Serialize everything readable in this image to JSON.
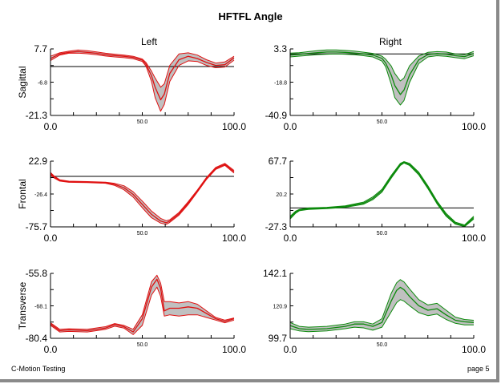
{
  "page_title": "HFTFL Angle",
  "footer": {
    "left": "C-Motion Testing",
    "right": "page 5"
  },
  "columns": {
    "left": "Left",
    "right": "Right"
  },
  "colors": {
    "left_line": "#e01010",
    "right_line": "#0a8a0a",
    "band": "#c0c0c0",
    "axis": "#000000"
  },
  "chart_data": [
    {
      "type": "line",
      "row": "Sagittal",
      "side": "Left",
      "ylabel": "Sagittal",
      "ylim": [
        -21.3,
        7.7
      ],
      "xlim": [
        0,
        100
      ],
      "y_ticks": [
        "7.7",
        "-6.8",
        "-21.3"
      ],
      "x_ticks": [
        "0.0",
        "50.0",
        "100.0"
      ],
      "zero_line": 0,
      "x": [
        0,
        5,
        10,
        15,
        20,
        25,
        30,
        35,
        40,
        45,
        50,
        52,
        55,
        57,
        60,
        62,
        65,
        70,
        75,
        80,
        85,
        90,
        95,
        100
      ],
      "mean": [
        3.5,
        5.5,
        6.2,
        6.5,
        6.2,
        5.8,
        5.2,
        4.8,
        4.5,
        4.0,
        2.8,
        1.0,
        -4.0,
        -9.0,
        -14.5,
        -12.0,
        -3.0,
        3.0,
        4.5,
        3.5,
        1.8,
        0.5,
        0.8,
        3.8
      ],
      "upper": [
        4.5,
        6.0,
        6.7,
        7.2,
        6.9,
        6.4,
        5.8,
        5.4,
        5.0,
        4.5,
        3.3,
        1.8,
        -2.0,
        -5.0,
        -9.0,
        -7.5,
        0.5,
        5.5,
        6.0,
        5.0,
        3.0,
        1.5,
        2.0,
        4.5
      ],
      "lower": [
        2.6,
        5.0,
        5.8,
        5.9,
        5.6,
        5.2,
        4.6,
        4.2,
        3.9,
        3.4,
        2.2,
        0.2,
        -6.5,
        -13.5,
        -19.5,
        -16.5,
        -6.5,
        0.5,
        2.5,
        2.2,
        0.5,
        -0.5,
        -0.2,
        2.8
      ]
    },
    {
      "type": "line",
      "row": "Sagittal",
      "side": "Right",
      "ylabel": "",
      "ylim": [
        -40.9,
        3.3
      ],
      "xlim": [
        0,
        100
      ],
      "y_ticks": [
        "3.3",
        "-18.8",
        "-40.9"
      ],
      "x_ticks": [
        "0.0",
        "50.0",
        "100.0"
      ],
      "zero_line": 0,
      "x": [
        0,
        5,
        10,
        15,
        20,
        25,
        30,
        35,
        40,
        45,
        50,
        52,
        55,
        57,
        60,
        62,
        65,
        70,
        75,
        80,
        85,
        90,
        95,
        100
      ],
      "mean": [
        -0.8,
        -0.3,
        0.3,
        0.8,
        1.2,
        1.2,
        1.0,
        0.6,
        0.0,
        -0.8,
        -3.0,
        -6.0,
        -14.0,
        -21.0,
        -27.0,
        -24.0,
        -14.0,
        -4.0,
        -0.5,
        0.2,
        -0.2,
        -1.2,
        -1.8,
        0.2
      ],
      "upper": [
        0.5,
        0.8,
        1.5,
        2.2,
        2.6,
        2.6,
        2.3,
        1.8,
        1.1,
        0.3,
        -1.5,
        -3.5,
        -8.0,
        -13.0,
        -18.0,
        -16.0,
        -8.0,
        -1.5,
        1.0,
        1.5,
        1.2,
        0.0,
        -0.5,
        1.6
      ],
      "lower": [
        -2.0,
        -1.5,
        -1.0,
        -0.5,
        -0.2,
        0.0,
        -0.2,
        -0.6,
        -1.2,
        -2.0,
        -4.8,
        -8.5,
        -20.0,
        -29.0,
        -34.0,
        -31.0,
        -19.0,
        -6.5,
        -2.0,
        -1.2,
        -1.6,
        -2.5,
        -3.2,
        -1.2
      ]
    },
    {
      "type": "line",
      "row": "Frontal",
      "side": "Left",
      "ylabel": "Frontal",
      "ylim": [
        -75.7,
        22.9
      ],
      "xlim": [
        0,
        100
      ],
      "y_ticks": [
        "22.9",
        "-26.4",
        "-75.7"
      ],
      "x_ticks": [
        "0.0",
        "50.0",
        "100.0"
      ],
      "zero_line": 0,
      "x": [
        0,
        2,
        5,
        10,
        20,
        30,
        35,
        40,
        45,
        50,
        55,
        60,
        63,
        65,
        70,
        75,
        80,
        85,
        90,
        95,
        100
      ],
      "mean": [
        4.0,
        -1.0,
        -6.0,
        -8.0,
        -8.5,
        -9.5,
        -12.0,
        -17.0,
        -27.0,
        -42.0,
        -57.0,
        -67.0,
        -69.5,
        -67.0,
        -56.0,
        -40.0,
        -22.0,
        -3.0,
        12.0,
        18.0,
        7.0
      ],
      "upper": [
        6.0,
        0.5,
        -5.0,
        -7.2,
        -7.8,
        -8.7,
        -10.5,
        -14.0,
        -23.0,
        -37.0,
        -52.0,
        -63.0,
        -66.5,
        -65.0,
        -54.0,
        -38.0,
        -20.5,
        -1.5,
        13.5,
        19.5,
        9.0
      ],
      "lower": [
        2.0,
        -2.5,
        -7.0,
        -8.8,
        -9.3,
        -10.3,
        -13.5,
        -20.0,
        -31.0,
        -47.0,
        -62.0,
        -70.0,
        -72.0,
        -69.0,
        -58.0,
        -42.0,
        -23.5,
        -4.5,
        10.5,
        16.5,
        5.0
      ]
    },
    {
      "type": "line",
      "row": "Frontal",
      "side": "Right",
      "ylabel": "",
      "ylim": [
        -27.3,
        67.7
      ],
      "xlim": [
        0,
        100
      ],
      "y_ticks": [
        "67.7",
        "20.2",
        "-27.3"
      ],
      "x_ticks": [
        "0.0",
        "50.0",
        "100.0"
      ],
      "zero_line": 0,
      "x": [
        0,
        3,
        5,
        10,
        20,
        30,
        40,
        45,
        50,
        55,
        60,
        62,
        65,
        70,
        75,
        80,
        85,
        90,
        95,
        100
      ],
      "mean": [
        -14.0,
        -6.0,
        -3.0,
        -1.0,
        0.0,
        2.0,
        7.0,
        14.0,
        25.0,
        45.0,
        63.0,
        66.0,
        63.0,
        50.0,
        30.0,
        8.0,
        -10.0,
        -22.0,
        -26.0,
        -14.0
      ],
      "upper": [
        -12.0,
        -4.5,
        -2.0,
        0.0,
        1.0,
        3.0,
        8.5,
        16.0,
        27.0,
        47.0,
        64.5,
        67.0,
        64.5,
        52.0,
        32.0,
        10.0,
        -8.0,
        -20.5,
        -24.5,
        -12.0
      ],
      "lower": [
        -16.0,
        -7.5,
        -4.0,
        -2.0,
        -1.0,
        1.0,
        5.5,
        12.0,
        23.0,
        43.0,
        61.5,
        65.0,
        61.5,
        48.0,
        28.0,
        6.0,
        -12.0,
        -23.5,
        -27.0,
        -16.0
      ]
    },
    {
      "type": "line",
      "row": "Transverse",
      "side": "Left",
      "ylabel": "Transverse",
      "ylim": [
        -80.4,
        -55.8
      ],
      "xlim": [
        0,
        100
      ],
      "y_ticks": [
        "-55.8",
        "-68.1",
        "-80.4"
      ],
      "x_ticks": [
        "0.0",
        "50.0",
        "100.0"
      ],
      "zero_line": null,
      "x": [
        0,
        5,
        10,
        20,
        30,
        35,
        40,
        45,
        50,
        55,
        58,
        60,
        62,
        65,
        70,
        75,
        80,
        85,
        90,
        95,
        100
      ],
      "mean": [
        -75.0,
        -77.5,
        -77.2,
        -77.5,
        -76.5,
        -75.2,
        -76.0,
        -78.0,
        -73.0,
        -61.0,
        -58.0,
        -61.5,
        -70.0,
        -69.0,
        -69.0,
        -68.5,
        -69.0,
        -71.0,
        -73.0,
        -74.0,
        -73.0
      ],
      "upper": [
        -74.5,
        -77.0,
        -76.8,
        -77.0,
        -76.0,
        -74.8,
        -75.5,
        -77.0,
        -71.5,
        -59.0,
        -56.5,
        -59.5,
        -66.5,
        -66.5,
        -67.0,
        -66.5,
        -67.5,
        -70.0,
        -72.5,
        -73.5,
        -72.7
      ],
      "lower": [
        -75.5,
        -78.0,
        -77.8,
        -78.0,
        -77.0,
        -75.8,
        -76.5,
        -79.0,
        -75.5,
        -64.0,
        -61.0,
        -64.5,
        -72.0,
        -71.5,
        -72.0,
        -71.5,
        -71.5,
        -72.5,
        -73.5,
        -74.5,
        -73.5
      ]
    },
    {
      "type": "line",
      "row": "Transverse",
      "side": "Right",
      "ylabel": "",
      "ylim": [
        99.7,
        142.1
      ],
      "xlim": [
        0,
        100
      ],
      "y_ticks": [
        "142.1",
        "120.9",
        "99.7"
      ],
      "x_ticks": [
        "0.0",
        "50.0",
        "100.0"
      ],
      "zero_line": null,
      "x": [
        0,
        5,
        10,
        20,
        30,
        35,
        40,
        45,
        50,
        55,
        58,
        60,
        62,
        65,
        70,
        75,
        80,
        85,
        90,
        95,
        100
      ],
      "mean": [
        108.0,
        106.0,
        105.5,
        106.0,
        107.5,
        109.0,
        109.0,
        107.5,
        110.0,
        124.0,
        131.0,
        133.0,
        131.5,
        127.0,
        121.0,
        118.0,
        119.0,
        115.0,
        111.5,
        110.5,
        110.0
      ],
      "upper": [
        110.0,
        107.5,
        107.0,
        107.5,
        109.0,
        110.5,
        110.5,
        109.0,
        112.5,
        129.0,
        136.0,
        138.0,
        136.5,
        132.0,
        125.0,
        121.5,
        122.5,
        118.0,
        113.5,
        112.0,
        111.5
      ],
      "lower": [
        106.0,
        104.5,
        104.0,
        104.5,
        106.0,
        107.0,
        106.5,
        105.0,
        107.0,
        117.0,
        123.0,
        125.0,
        124.0,
        121.0,
        116.5,
        114.5,
        115.5,
        112.0,
        109.5,
        108.5,
        108.5
      ]
    }
  ]
}
